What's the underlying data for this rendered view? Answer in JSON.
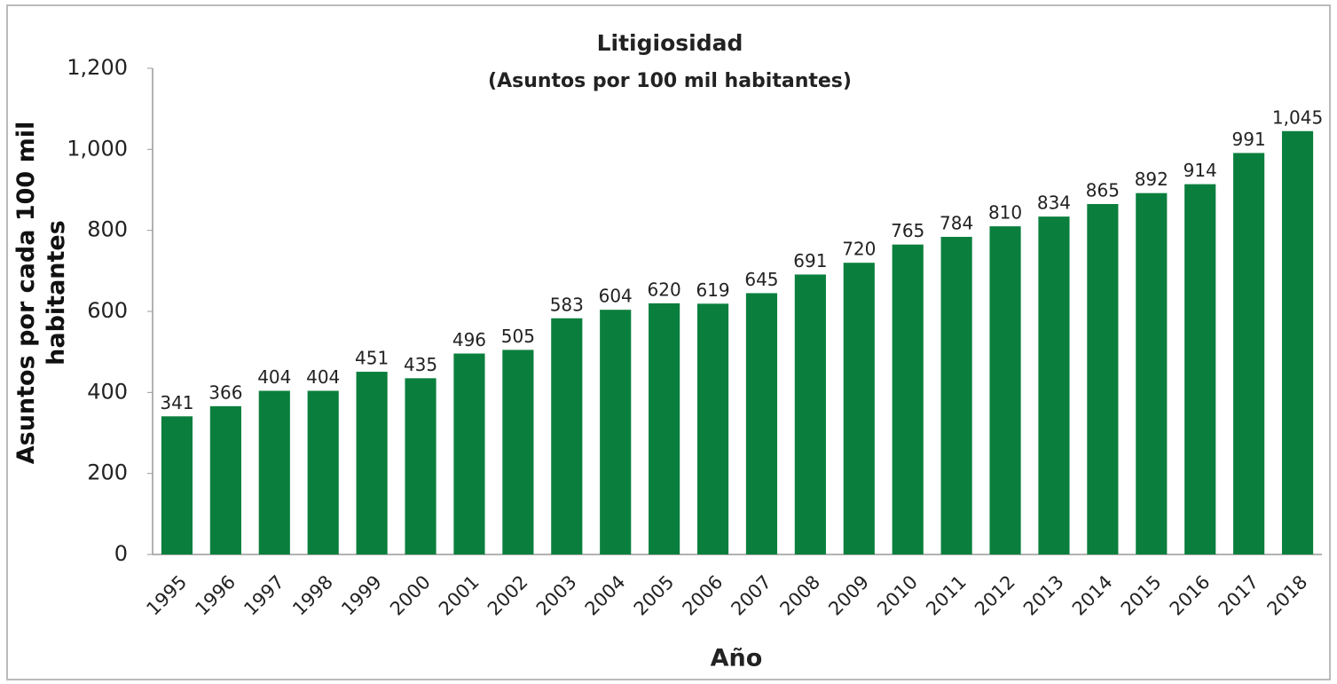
{
  "chart_data": {
    "type": "bar",
    "title": "Litigiosidad",
    "subtitle": "(Asuntos por 100 mil habitantes)",
    "x_label": "Año",
    "y_label": "Asuntos por cada 100 mil habitantes",
    "categories": [
      "1995",
      "1996",
      "1997",
      "1998",
      "1999",
      "2000",
      "2001",
      "2002",
      "2003",
      "2004",
      "2005",
      "2006",
      "2007",
      "2008",
      "2009",
      "2010",
      "2011",
      "2012",
      "2013",
      "2014",
      "2015",
      "2016",
      "2017",
      "2018"
    ],
    "values": [
      341,
      366,
      404,
      404,
      451,
      435,
      496,
      505,
      583,
      604,
      620,
      619,
      645,
      691,
      720,
      765,
      784,
      810,
      834,
      865,
      892,
      914,
      991,
      1045
    ],
    "value_labels": [
      "341",
      "366",
      "404",
      "404",
      "451",
      "435",
      "496",
      "505",
      "583",
      "604",
      "620",
      "619",
      "645",
      "691",
      "720",
      "765",
      "784",
      "810",
      "834",
      "865",
      "892",
      "914",
      "991",
      "1,045"
    ],
    "color": "#0a7f3d",
    "ylim": [
      0,
      1200
    ],
    "yticks": [
      0,
      200,
      400,
      600,
      800,
      {
        "value": 1000,
        "label": "1,000"
      },
      {
        "value": 1200,
        "label": "1,200"
      }
    ],
    "grid": false
  }
}
